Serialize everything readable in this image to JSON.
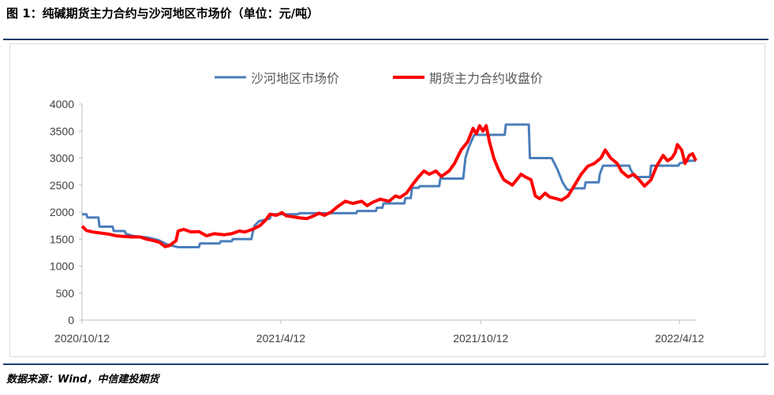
{
  "page": {
    "title": "图 1：纯碱期货主力合约与沙河地区市场价（单位：元/吨）",
    "source": "数据来源：Wind，中信建投期货"
  },
  "colors": {
    "series_blue": "#4a7ebb",
    "series_red": "#ff0000",
    "rule": "#1f3b6e",
    "axis": "#bfbfbf"
  },
  "chart_data": {
    "type": "line",
    "title": "",
    "xlabel": "",
    "ylabel": "",
    "ylim": [
      0,
      4000
    ],
    "y_ticks": [
      "4000",
      "3500",
      "3000",
      "2500",
      "2000",
      "1500",
      "1000",
      "500",
      "0"
    ],
    "x_range": [
      "2020-10-12",
      "2022-04-27"
    ],
    "x_ticks": [
      {
        "label": "2020/10/12",
        "date": "2020-10-12"
      },
      {
        "label": "2021/4/12",
        "date": "2021-04-12"
      },
      {
        "label": "2021/10/12",
        "date": "2021-10-12"
      },
      {
        "label": "2022/4/12",
        "date": "2022-04-12"
      }
    ],
    "grid": false,
    "legend_position": "top-center",
    "series": [
      {
        "name": "沙河地区市场价",
        "color": "#4a7ebb",
        "points": [
          [
            "2020-10-12",
            1960
          ],
          [
            "2020-10-16",
            1960
          ],
          [
            "2020-10-17",
            1900
          ],
          [
            "2020-10-27",
            1900
          ],
          [
            "2020-10-28",
            1730
          ],
          [
            "2020-11-09",
            1730
          ],
          [
            "2020-11-10",
            1650
          ],
          [
            "2020-11-20",
            1650
          ],
          [
            "2020-11-21",
            1600
          ],
          [
            "2020-11-27",
            1560
          ],
          [
            "2020-12-11",
            1530
          ],
          [
            "2020-12-21",
            1480
          ],
          [
            "2020-12-29",
            1400
          ],
          [
            "2021-01-08",
            1350
          ],
          [
            "2021-01-27",
            1350
          ],
          [
            "2021-01-28",
            1420
          ],
          [
            "2021-02-15",
            1420
          ],
          [
            "2021-02-16",
            1460
          ],
          [
            "2021-02-26",
            1460
          ],
          [
            "2021-02-27",
            1500
          ],
          [
            "2021-03-16",
            1500
          ],
          [
            "2021-03-17",
            1600
          ],
          [
            "2021-03-19",
            1750
          ],
          [
            "2021-03-23",
            1830
          ],
          [
            "2021-04-02",
            1880
          ],
          [
            "2021-04-03",
            1960
          ],
          [
            "2021-04-28",
            1960
          ],
          [
            "2021-04-29",
            1980
          ],
          [
            "2021-06-20",
            1980
          ],
          [
            "2021-06-21",
            2020
          ],
          [
            "2021-07-08",
            2020
          ],
          [
            "2021-07-09",
            2080
          ],
          [
            "2021-07-14",
            2080
          ],
          [
            "2021-07-15",
            2160
          ],
          [
            "2021-08-03",
            2160
          ],
          [
            "2021-08-04",
            2260
          ],
          [
            "2021-08-09",
            2260
          ],
          [
            "2021-08-10",
            2450
          ],
          [
            "2021-08-16",
            2450
          ],
          [
            "2021-08-17",
            2480
          ],
          [
            "2021-09-04",
            2480
          ],
          [
            "2021-09-05",
            2620
          ],
          [
            "2021-09-26",
            2620
          ],
          [
            "2021-09-28",
            3000
          ],
          [
            "2021-10-01",
            3200
          ],
          [
            "2021-10-06",
            3430
          ],
          [
            "2021-11-03",
            3430
          ],
          [
            "2021-11-04",
            3620
          ],
          [
            "2021-11-25",
            3620
          ],
          [
            "2021-11-26",
            3000
          ],
          [
            "2021-12-16",
            3000
          ],
          [
            "2021-12-21",
            2800
          ],
          [
            "2021-12-26",
            2550
          ],
          [
            "2021-12-30",
            2420
          ],
          [
            "2022-01-03",
            2400
          ],
          [
            "2022-01-05",
            2440
          ],
          [
            "2022-01-15",
            2440
          ],
          [
            "2022-01-16",
            2550
          ],
          [
            "2022-01-28",
            2550
          ],
          [
            "2022-01-29",
            2700
          ],
          [
            "2022-02-01",
            2860
          ],
          [
            "2022-02-25",
            2860
          ],
          [
            "2022-02-26",
            2800
          ],
          [
            "2022-03-02",
            2650
          ],
          [
            "2022-03-16",
            2650
          ],
          [
            "2022-03-17",
            2860
          ],
          [
            "2022-04-11",
            2860
          ],
          [
            "2022-04-12",
            2900
          ],
          [
            "2022-04-21",
            2950
          ],
          [
            "2022-04-27",
            2950
          ]
        ]
      },
      {
        "name": "期货主力合约收盘价",
        "color": "#ff0000",
        "points": [
          [
            "2020-10-12",
            1740
          ],
          [
            "2020-10-16",
            1660
          ],
          [
            "2020-10-22",
            1630
          ],
          [
            "2020-10-30",
            1610
          ],
          [
            "2020-11-06",
            1590
          ],
          [
            "2020-11-12",
            1560
          ],
          [
            "2020-11-18",
            1550
          ],
          [
            "2020-11-26",
            1540
          ],
          [
            "2020-12-04",
            1540
          ],
          [
            "2020-12-10",
            1500
          ],
          [
            "2020-12-17",
            1470
          ],
          [
            "2020-12-22",
            1440
          ],
          [
            "2020-12-27",
            1360
          ],
          [
            "2020-12-31",
            1380
          ],
          [
            "2021-01-06",
            1470
          ],
          [
            "2021-01-08",
            1650
          ],
          [
            "2021-01-13",
            1680
          ],
          [
            "2021-01-20",
            1630
          ],
          [
            "2021-01-27",
            1640
          ],
          [
            "2021-02-03",
            1560
          ],
          [
            "2021-02-10",
            1600
          ],
          [
            "2021-02-19",
            1580
          ],
          [
            "2021-02-26",
            1600
          ],
          [
            "2021-03-05",
            1650
          ],
          [
            "2021-03-10",
            1630
          ],
          [
            "2021-03-17",
            1680
          ],
          [
            "2021-03-24",
            1750
          ],
          [
            "2021-03-29",
            1850
          ],
          [
            "2021-04-02",
            1960
          ],
          [
            "2021-04-08",
            1940
          ],
          [
            "2021-04-13",
            1990
          ],
          [
            "2021-04-17",
            1930
          ],
          [
            "2021-04-24",
            1910
          ],
          [
            "2021-04-30",
            1890
          ],
          [
            "2021-05-06",
            1880
          ],
          [
            "2021-05-12",
            1930
          ],
          [
            "2021-05-17",
            1980
          ],
          [
            "2021-05-22",
            1940
          ],
          [
            "2021-05-28",
            2000
          ],
          [
            "2021-06-03",
            2100
          ],
          [
            "2021-06-10",
            2200
          ],
          [
            "2021-06-17",
            2160
          ],
          [
            "2021-06-25",
            2200
          ],
          [
            "2021-06-30",
            2120
          ],
          [
            "2021-07-05",
            2180
          ],
          [
            "2021-07-12",
            2240
          ],
          [
            "2021-07-20",
            2200
          ],
          [
            "2021-07-26",
            2300
          ],
          [
            "2021-07-30",
            2270
          ],
          [
            "2021-08-05",
            2350
          ],
          [
            "2021-08-11",
            2520
          ],
          [
            "2021-08-16",
            2650
          ],
          [
            "2021-08-21",
            2760
          ],
          [
            "2021-08-26",
            2700
          ],
          [
            "2021-09-01",
            2760
          ],
          [
            "2021-09-06",
            2660
          ],
          [
            "2021-09-13",
            2760
          ],
          [
            "2021-09-18",
            2900
          ],
          [
            "2021-09-24",
            3150
          ],
          [
            "2021-09-30",
            3300
          ],
          [
            "2021-10-05",
            3550
          ],
          [
            "2021-10-08",
            3450
          ],
          [
            "2021-10-11",
            3600
          ],
          [
            "2021-10-14",
            3500
          ],
          [
            "2021-10-17",
            3600
          ],
          [
            "2021-10-20",
            3300
          ],
          [
            "2021-10-24",
            3000
          ],
          [
            "2021-10-28",
            2800
          ],
          [
            "2021-11-02",
            2600
          ],
          [
            "2021-11-06",
            2550
          ],
          [
            "2021-11-10",
            2500
          ],
          [
            "2021-11-14",
            2600
          ],
          [
            "2021-11-18",
            2700
          ],
          [
            "2021-11-22",
            2650
          ],
          [
            "2021-11-27",
            2600
          ],
          [
            "2021-12-01",
            2300
          ],
          [
            "2021-12-05",
            2250
          ],
          [
            "2021-12-10",
            2350
          ],
          [
            "2021-12-14",
            2280
          ],
          [
            "2021-12-20",
            2250
          ],
          [
            "2021-12-25",
            2220
          ],
          [
            "2021-12-31",
            2300
          ],
          [
            "2022-01-06",
            2500
          ],
          [
            "2022-01-12",
            2700
          ],
          [
            "2022-01-18",
            2850
          ],
          [
            "2022-01-24",
            2900
          ],
          [
            "2022-01-30",
            3000
          ],
          [
            "2022-02-03",
            3150
          ],
          [
            "2022-02-08",
            3000
          ],
          [
            "2022-02-14",
            2900
          ],
          [
            "2022-02-18",
            2750
          ],
          [
            "2022-02-24",
            2650
          ],
          [
            "2022-03-01",
            2700
          ],
          [
            "2022-03-06",
            2600
          ],
          [
            "2022-03-11",
            2480
          ],
          [
            "2022-03-17",
            2600
          ],
          [
            "2022-03-22",
            2850
          ],
          [
            "2022-03-28",
            3050
          ],
          [
            "2022-04-01",
            2950
          ],
          [
            "2022-04-05",
            3000
          ],
          [
            "2022-04-08",
            3100
          ],
          [
            "2022-04-10",
            3250
          ],
          [
            "2022-04-14",
            3150
          ],
          [
            "2022-04-17",
            2900
          ],
          [
            "2022-04-21",
            3050
          ],
          [
            "2022-04-24",
            3080
          ],
          [
            "2022-04-27",
            2950
          ]
        ]
      }
    ]
  }
}
